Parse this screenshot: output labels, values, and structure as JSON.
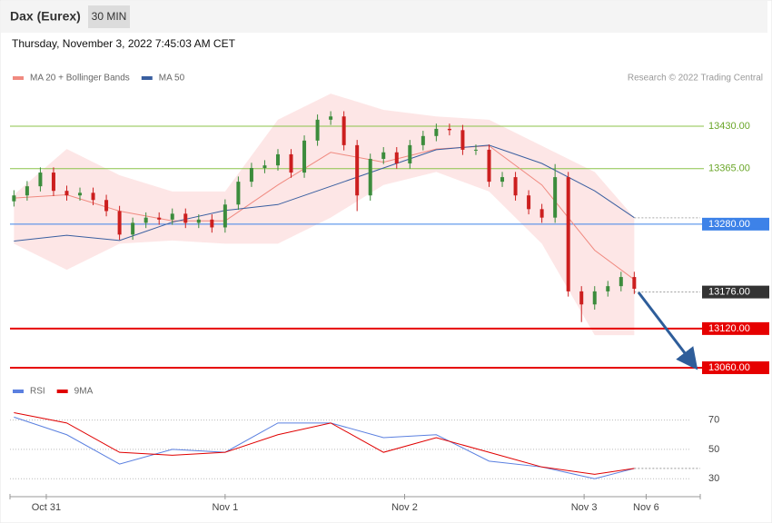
{
  "header": {
    "title": "Dax (Eurex)",
    "interval": "30 MIN",
    "timestamp": "Thursday, November 3, 2022 7:45:03 AM CET"
  },
  "chart_data": [
    {
      "type": "candlestick",
      "source": "Research © 2022 Trading Central",
      "up_color": "#3c8c3c",
      "down_color": "#cc1f1f",
      "open": [
        13315,
        13324,
        13338,
        13359,
        13331,
        13324,
        13328,
        13317,
        13300,
        13264,
        13282,
        13290,
        13287,
        13296,
        13282,
        13287,
        13275,
        13310,
        13345,
        13366,
        13370,
        13387,
        13359,
        13408,
        13440,
        13445,
        13401,
        13324,
        13380,
        13390,
        13373,
        13401,
        13415,
        13426,
        13424,
        13394,
        13394,
        13345,
        13352,
        13324,
        13303,
        13290,
        13352,
        13177,
        13157,
        13177,
        13185,
        13199
      ],
      "high": [
        13332,
        13346,
        13367,
        13367,
        13339,
        13336,
        13336,
        13325,
        13308,
        13290,
        13298,
        13298,
        13304,
        13304,
        13295,
        13295,
        13318,
        13353,
        13374,
        13378,
        13395,
        13395,
        13416,
        13448,
        13453,
        13453,
        13409,
        13388,
        13398,
        13398,
        13409,
        13423,
        13434,
        13434,
        13432,
        13402,
        13402,
        13360,
        13360,
        13332,
        13311,
        13372,
        13360,
        13185,
        13185,
        13193,
        13207,
        13207
      ],
      "low": [
        13307,
        13316,
        13330,
        13323,
        13316,
        13316,
        13309,
        13292,
        13256,
        13256,
        13274,
        13279,
        13279,
        13274,
        13274,
        13267,
        13267,
        13302,
        13337,
        13358,
        13362,
        13351,
        13351,
        13400,
        13432,
        13393,
        13300,
        13316,
        13372,
        13365,
        13365,
        13393,
        13407,
        13416,
        13386,
        13386,
        13337,
        13337,
        13316,
        13295,
        13282,
        13282,
        13169,
        13130,
        13149,
        13169,
        13177,
        13173
      ],
      "close": [
        13324,
        13338,
        13359,
        13331,
        13324,
        13328,
        13317,
        13300,
        13264,
        13282,
        13290,
        13287,
        13296,
        13282,
        13287,
        13275,
        13310,
        13345,
        13366,
        13370,
        13387,
        13359,
        13408,
        13440,
        13445,
        13401,
        13324,
        13380,
        13390,
        13373,
        13401,
        13415,
        13426,
        13424,
        13394,
        13394,
        13345,
        13352,
        13324,
        13303,
        13290,
        13352,
        13177,
        13157,
        13177,
        13185,
        13199,
        13181
      ],
      "series": [
        {
          "name": "MA 20 + Bollinger Bands",
          "color": "#f08a80",
          "band_color": "#fde3e3",
          "x": [
            0,
            4,
            8,
            12,
            16,
            20,
            24,
            28,
            32,
            36,
            40,
            44,
            47
          ],
          "values": [
            13320,
            13325,
            13300,
            13285,
            13285,
            13340,
            13390,
            13375,
            13395,
            13400,
            13340,
            13240,
            13195
          ],
          "upper": [
            13325,
            13395,
            13355,
            13330,
            13330,
            13440,
            13480,
            13455,
            13445,
            13440,
            13400,
            13360,
            13290
          ],
          "lower": [
            13250,
            13210,
            13250,
            13255,
            13250,
            13250,
            13290,
            13340,
            13360,
            13330,
            13250,
            13110,
            13110
          ]
        },
        {
          "name": "MA 50",
          "color": "#3a5fa0",
          "x": [
            0,
            4,
            8,
            12,
            16,
            20,
            24,
            28,
            32,
            36,
            40,
            44,
            47
          ],
          "values": [
            13254,
            13263,
            13255,
            13283,
            13301,
            13310,
            13338,
            13366,
            13394,
            13401,
            13373,
            13331,
            13290
          ]
        }
      ],
      "levels": [
        {
          "value": 13430,
          "label": "13430.00",
          "color": "#8cc34a",
          "style": "line-text"
        },
        {
          "value": 13365,
          "label": "13365.00",
          "color": "#8cc34a",
          "style": "line-text"
        },
        {
          "value": 13280,
          "label": "13280.00",
          "color": "#3d82e8",
          "style": "line-box"
        },
        {
          "value": 13176,
          "label": "13176.00",
          "color": "#333333",
          "style": "dotted-box"
        },
        {
          "value": 13120,
          "label": "13120.00",
          "color": "#e60000",
          "style": "line-box"
        },
        {
          "value": 13060,
          "label": "13060.00",
          "color": "#e60000",
          "style": "line-box"
        }
      ],
      "xlim": [
        -0.3,
        52
      ],
      "ylim": [
        13050,
        13500
      ],
      "xticks": [
        {
          "value": 2.45,
          "label": "Oct 31"
        },
        {
          "value": 16.0,
          "label": "Nov 1"
        },
        {
          "value": 29.6,
          "label": "Nov 2"
        },
        {
          "value": 43.2,
          "label": "Nov 3"
        },
        {
          "value": 47.9,
          "label": "Nov 6"
        }
      ]
    },
    {
      "type": "line",
      "series": [
        {
          "name": "RSI",
          "color": "#5b80e0",
          "x": [
            0,
            4,
            8,
            12,
            16,
            20,
            24,
            28,
            32,
            36,
            40,
            44,
            47
          ],
          "values": [
            72,
            60,
            40,
            50,
            48,
            68,
            68,
            58,
            60,
            42,
            38,
            30,
            37
          ]
        },
        {
          "name": "9MA",
          "color": "#e00000",
          "x": [
            0,
            4,
            8,
            12,
            16,
            20,
            24,
            28,
            32,
            36,
            40,
            44,
            47
          ],
          "values": [
            75,
            68,
            48,
            46,
            48,
            60,
            68,
            48,
            58,
            48,
            38,
            33,
            37
          ]
        }
      ],
      "xlim": [
        -0.3,
        52
      ],
      "ylim": [
        19,
        84
      ],
      "yticks": [
        30,
        50,
        70
      ]
    }
  ]
}
